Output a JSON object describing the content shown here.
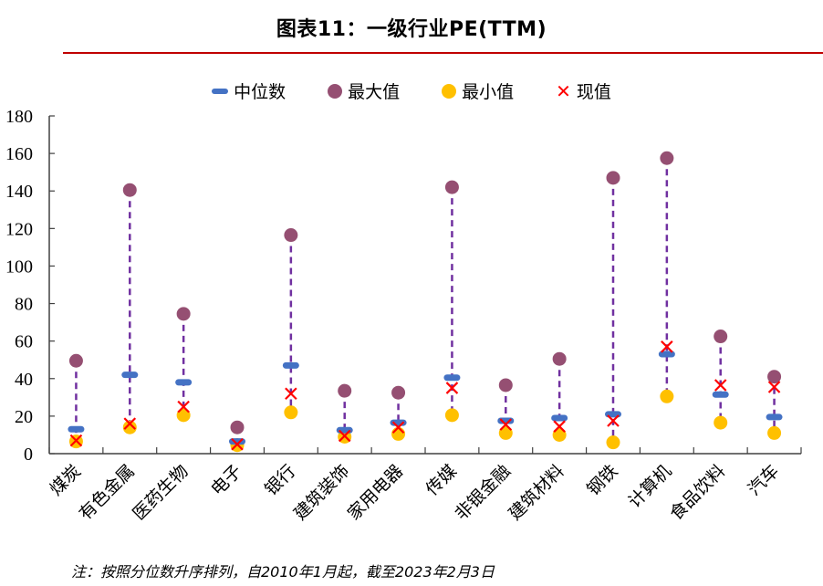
{
  "chart_data": {
    "type": "scatter",
    "title": "图表11：一级行业PE(TTM)",
    "xlabel": "",
    "ylabel": "",
    "ylim": [
      0,
      180
    ],
    "yticks": [
      0,
      20,
      40,
      60,
      80,
      100,
      120,
      140,
      160,
      180
    ],
    "grid": false,
    "legend_position": "top-center",
    "legend": [
      {
        "key": "median",
        "label": "中位数",
        "color": "#4472c4",
        "marker": "dash"
      },
      {
        "key": "max",
        "label": "最大值",
        "color": "#954f72",
        "marker": "circle"
      },
      {
        "key": "min",
        "label": "最小值",
        "color": "#ffc000",
        "marker": "circle"
      },
      {
        "key": "current",
        "label": "现值",
        "color": "#ff0000",
        "marker": "x"
      }
    ],
    "range_line_color": "#7030a0",
    "categories": [
      "煤炭",
      "有色金属",
      "医药生物",
      "电子",
      "银行",
      "建筑装饰",
      "家用电器",
      "传媒",
      "非银金融",
      "建筑材料",
      "钢铁",
      "计算机",
      "食品饮料",
      "汽车"
    ],
    "series": [
      {
        "name": "中位数",
        "key": "median",
        "values": [
          13,
          42,
          38,
          6.5,
          47,
          12.5,
          16.5,
          40.5,
          17.5,
          19,
          21,
          53,
          31.5,
          19.5
        ]
      },
      {
        "name": "最大值",
        "key": "max",
        "values": [
          49.5,
          140.5,
          74.5,
          14,
          116.5,
          33.5,
          32.5,
          142,
          36.5,
          50.5,
          147,
          157.5,
          62.5,
          41
        ]
      },
      {
        "name": "最小值",
        "key": "min",
        "values": [
          6.5,
          14,
          20.5,
          4.5,
          22,
          9,
          10.5,
          20.5,
          11,
          10,
          6,
          30.5,
          16.5,
          11
        ]
      },
      {
        "name": "现值",
        "key": "current",
        "values": [
          7,
          16,
          25,
          5,
          32,
          9.5,
          14,
          35,
          15.5,
          14.5,
          17.5,
          57,
          36.5,
          35.5
        ]
      }
    ],
    "note": "注：按照分位数升序排列，自2010年1月起，截至2023年2月3日"
  }
}
